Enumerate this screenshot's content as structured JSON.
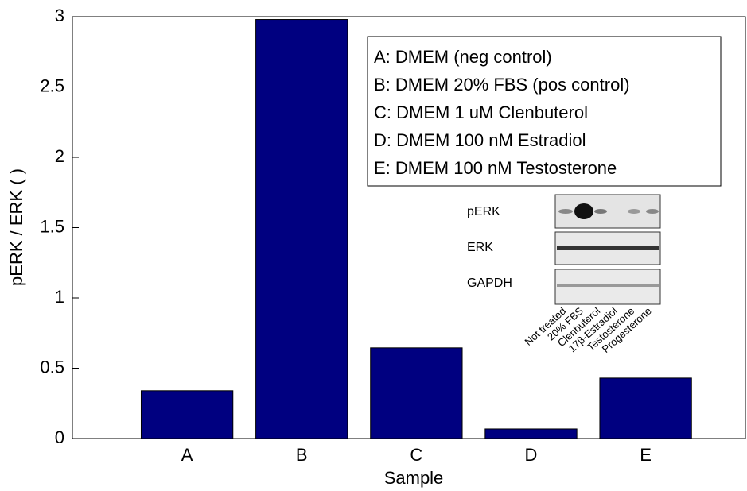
{
  "chart_data": {
    "type": "bar",
    "categories": [
      "A",
      "B",
      "C",
      "D",
      "E"
    ],
    "values": [
      0.34,
      2.98,
      0.645,
      0.068,
      0.43
    ],
    "color": "#000080",
    "ylim": [
      0,
      3
    ],
    "yticks": [
      0,
      0.5,
      1,
      1.5,
      2,
      2.5,
      3
    ],
    "xlabel": "Sample",
    "ylabel": "pERK / ERK ( )",
    "legend_box": [
      "A: DMEM (neg control)",
      "B: DMEM 20% FBS (pos control)",
      "C: DMEM 1 uM Clenbuterol",
      "D: DMEM 100 nM Estradiol",
      "E: DMEM 100 nM Testosterone"
    ],
    "inset_row_labels": [
      "pERK",
      "ERK",
      "GAPDH"
    ],
    "inset_lane_labels": [
      "Not treated",
      "20% FBS",
      "Clenbuterol",
      "17β-Estradiol",
      "Testosterone",
      "Progesterone"
    ]
  }
}
